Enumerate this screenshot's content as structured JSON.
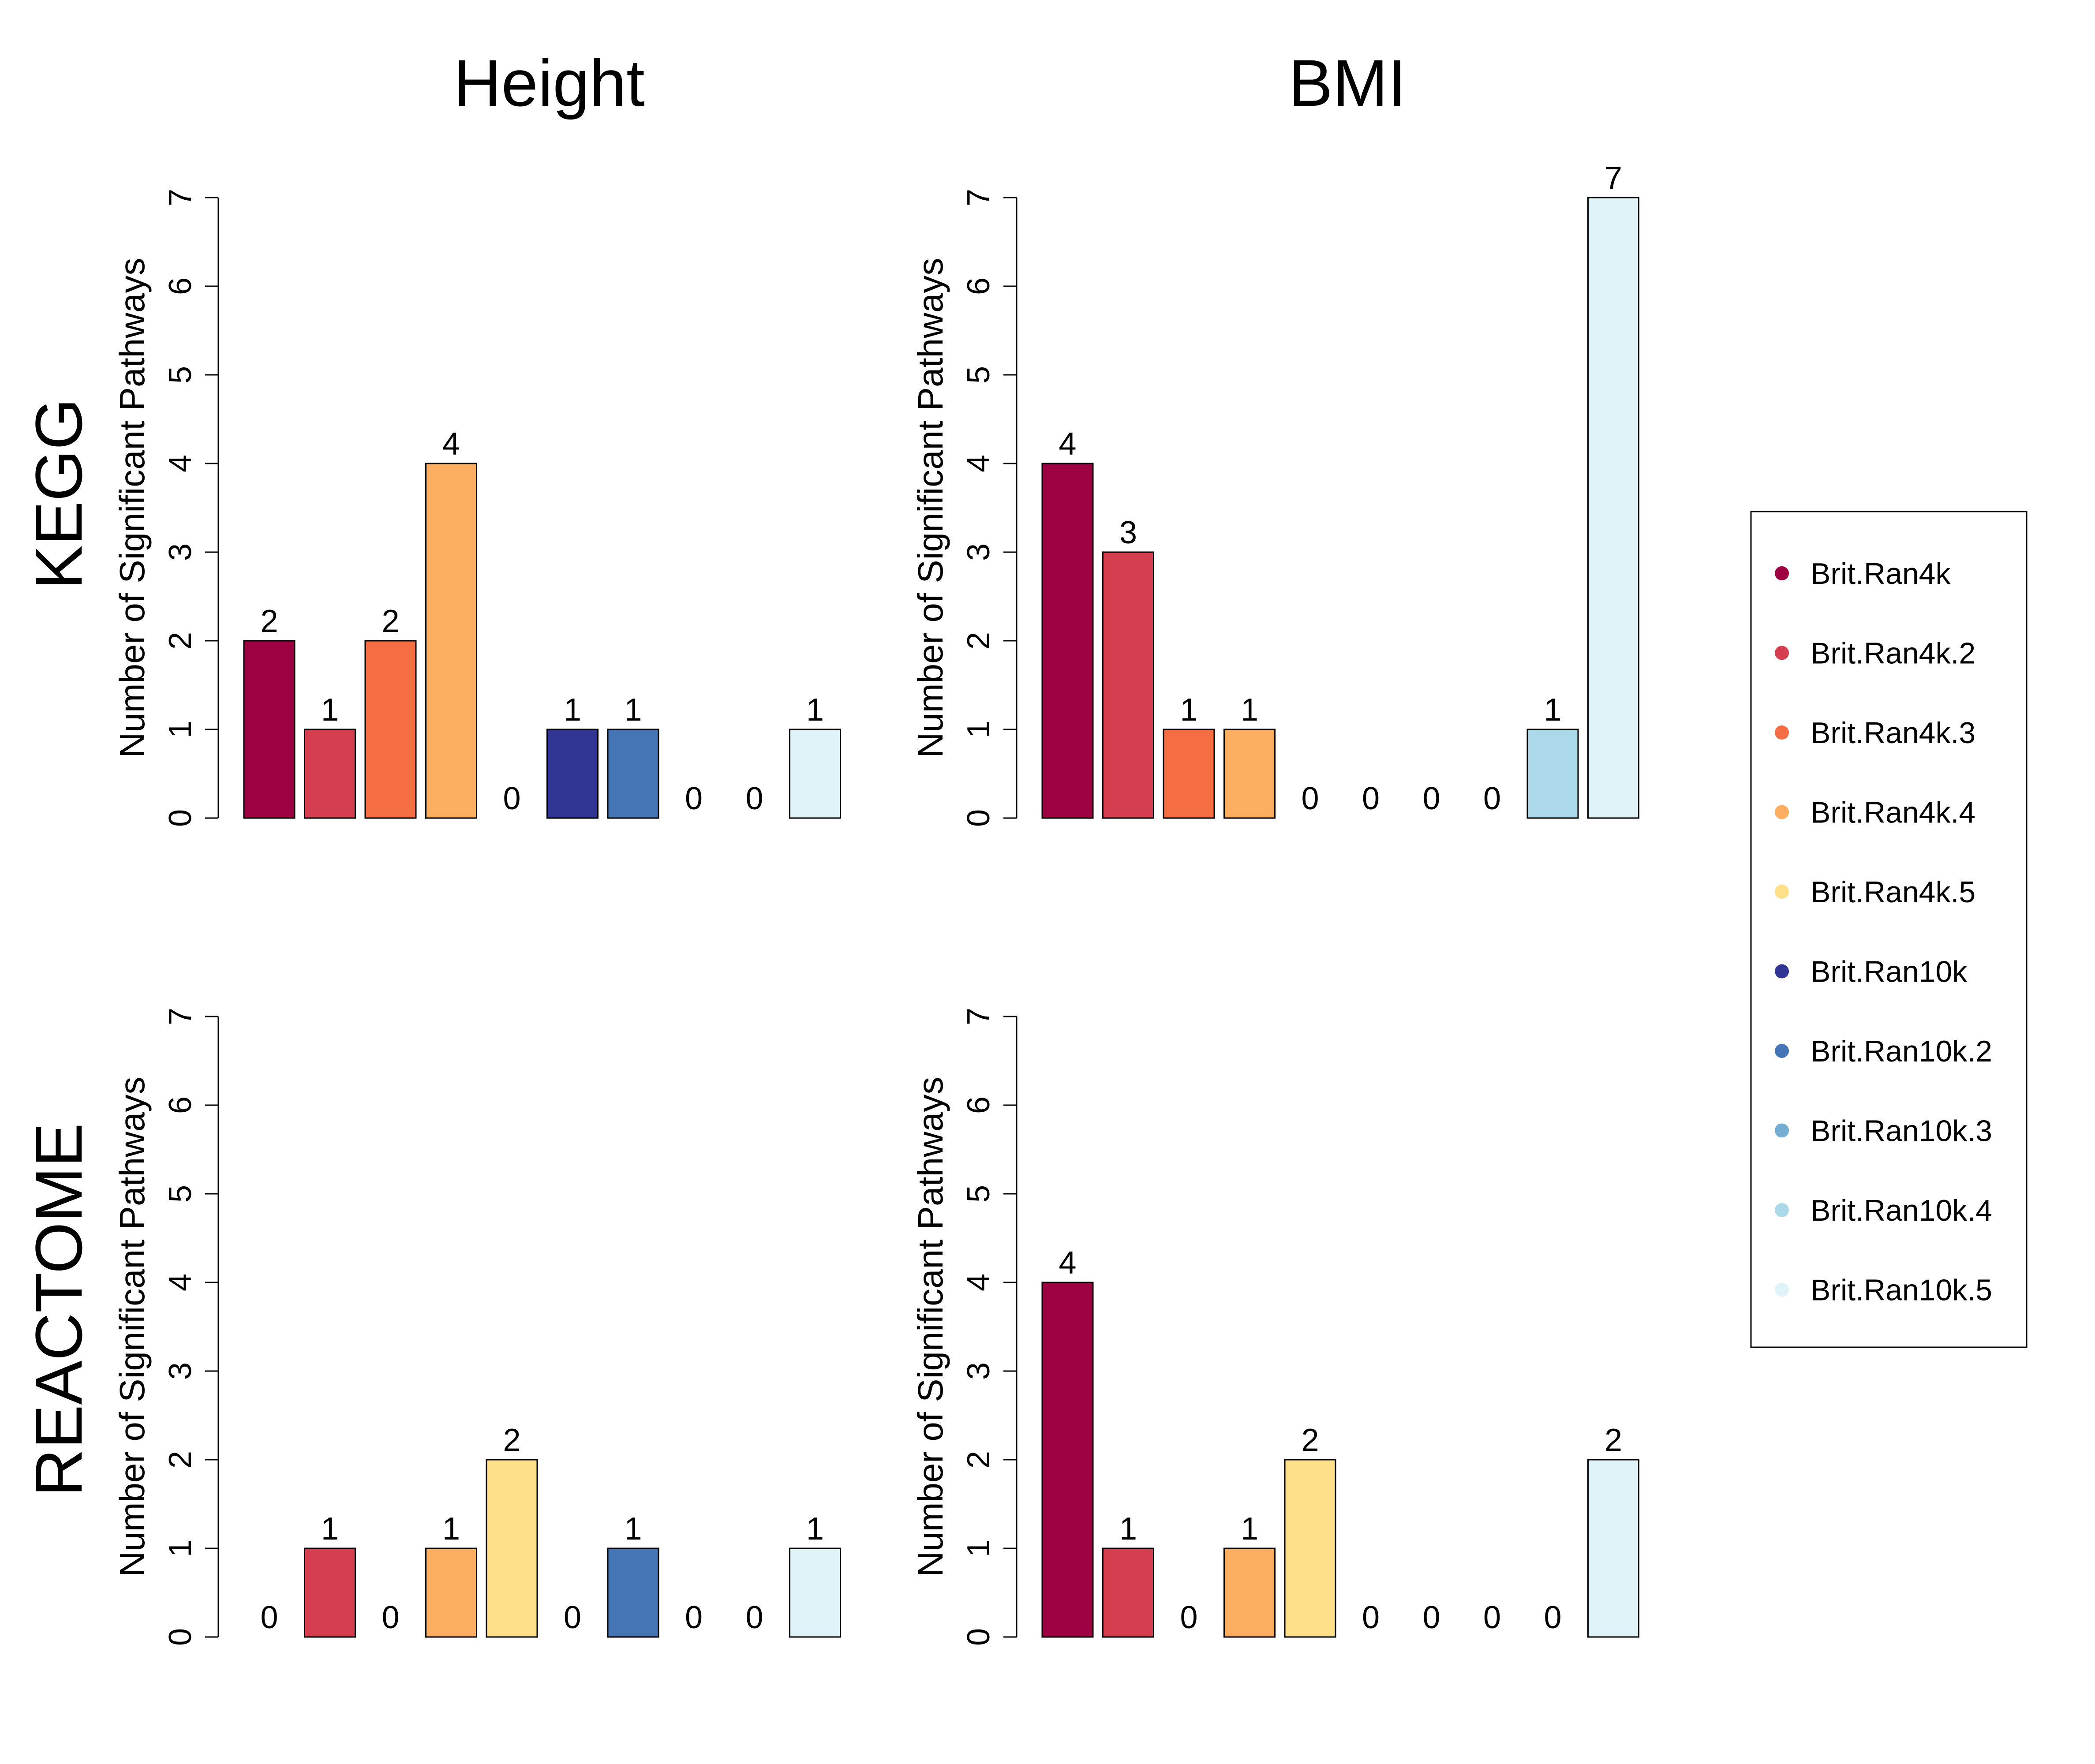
{
  "column_titles": [
    "Height",
    "BMI"
  ],
  "row_titles": [
    "KEGG",
    "REACTOME"
  ],
  "legend": {
    "entries": [
      {
        "label": "Brit.Ran4k",
        "color": "#9E0142"
      },
      {
        "label": "Brit.Ran4k.2",
        "color": "#D53E4F"
      },
      {
        "label": "Brit.Ran4k.3",
        "color": "#F46D43"
      },
      {
        "label": "Brit.Ran4k.4",
        "color": "#FDAE61"
      },
      {
        "label": "Brit.Ran4k.5",
        "color": "#FEE08B"
      },
      {
        "label": "Brit.Ran10k",
        "color": "#313695"
      },
      {
        "label": "Brit.Ran10k.2",
        "color": "#4575B4"
      },
      {
        "label": "Brit.Ran10k.3",
        "color": "#74ADD1"
      },
      {
        "label": "Brit.Ran10k.4",
        "color": "#ABD9E9"
      },
      {
        "label": "Brit.Ran10k.5",
        "color": "#E0F3F8"
      }
    ],
    "placement": "right"
  },
  "chart_data": [
    {
      "type": "bar",
      "title": "",
      "row": "KEGG",
      "column": "Height",
      "ylabel": "Number of Significant Pathways",
      "ylim": [
        0,
        7
      ],
      "yticks": [
        0,
        1,
        2,
        3,
        4,
        5,
        6,
        7
      ],
      "categories": [
        "Brit.Ran4k",
        "Brit.Ran4k.2",
        "Brit.Ran4k.3",
        "Brit.Ran4k.4",
        "Brit.Ran4k.5",
        "Brit.Ran10k",
        "Brit.Ran10k.2",
        "Brit.Ran10k.3",
        "Brit.Ran10k.4",
        "Brit.Ran10k.5"
      ],
      "values": [
        2,
        1,
        2,
        4,
        0,
        1,
        1,
        0,
        0,
        1
      ],
      "data_labels": true,
      "grid": false
    },
    {
      "type": "bar",
      "title": "",
      "row": "KEGG",
      "column": "BMI",
      "ylabel": "Number of Significant Pathways",
      "ylim": [
        0,
        7
      ],
      "yticks": [
        0,
        1,
        2,
        3,
        4,
        5,
        6,
        7
      ],
      "categories": [
        "Brit.Ran4k",
        "Brit.Ran4k.2",
        "Brit.Ran4k.3",
        "Brit.Ran4k.4",
        "Brit.Ran4k.5",
        "Brit.Ran10k",
        "Brit.Ran10k.2",
        "Brit.Ran10k.3",
        "Brit.Ran10k.4",
        "Brit.Ran10k.5"
      ],
      "values": [
        4,
        3,
        1,
        1,
        0,
        0,
        0,
        0,
        1,
        7
      ],
      "data_labels": true,
      "grid": false
    },
    {
      "type": "bar",
      "title": "",
      "row": "REACTOME",
      "column": "Height",
      "ylabel": "Number of Significant Pathways",
      "ylim": [
        0,
        7
      ],
      "yticks": [
        0,
        1,
        2,
        3,
        4,
        5,
        6,
        7
      ],
      "categories": [
        "Brit.Ran4k",
        "Brit.Ran4k.2",
        "Brit.Ran4k.3",
        "Brit.Ran4k.4",
        "Brit.Ran4k.5",
        "Brit.Ran10k",
        "Brit.Ran10k.2",
        "Brit.Ran10k.3",
        "Brit.Ran10k.4",
        "Brit.Ran10k.5"
      ],
      "values": [
        0,
        1,
        0,
        1,
        2,
        0,
        1,
        0,
        0,
        1
      ],
      "data_labels": true,
      "grid": false
    },
    {
      "type": "bar",
      "title": "",
      "row": "REACTOME",
      "column": "BMI",
      "ylabel": "Number of Significant Pathways",
      "ylim": [
        0,
        7
      ],
      "yticks": [
        0,
        1,
        2,
        3,
        4,
        5,
        6,
        7
      ],
      "categories": [
        "Brit.Ran4k",
        "Brit.Ran4k.2",
        "Brit.Ran4k.3",
        "Brit.Ran4k.4",
        "Brit.Ran4k.5",
        "Brit.Ran10k",
        "Brit.Ran10k.2",
        "Brit.Ran10k.3",
        "Brit.Ran10k.4",
        "Brit.Ran10k.5"
      ],
      "values": [
        4,
        1,
        0,
        1,
        2,
        0,
        0,
        0,
        0,
        2
      ],
      "data_labels": true,
      "grid": false
    }
  ]
}
